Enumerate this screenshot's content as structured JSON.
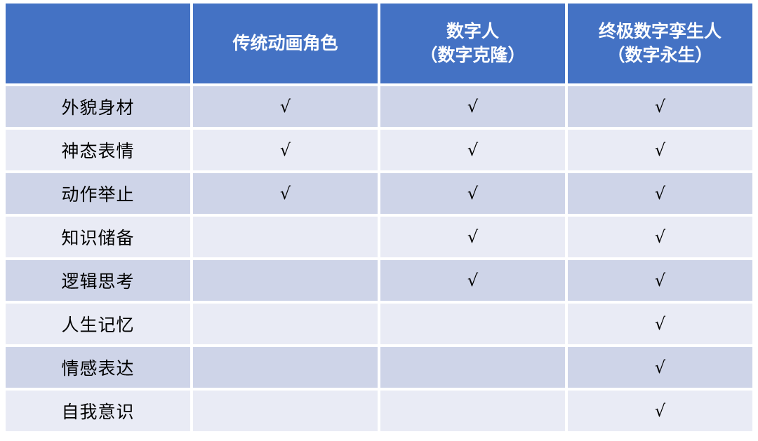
{
  "chart_data": {
    "type": "table",
    "checkmark_symbol": "√",
    "columns": [
      {
        "label": ""
      },
      {
        "label": "传统动画角色"
      },
      {
        "label": "数字人\n（数字克隆）"
      },
      {
        "label": "终极数字孪生人\n（数字永生）"
      }
    ],
    "rows": [
      {
        "label": "外貌身材",
        "cells": [
          "√",
          "√",
          "√"
        ]
      },
      {
        "label": "神态表情",
        "cells": [
          "√",
          "√",
          "√"
        ]
      },
      {
        "label": "动作举止",
        "cells": [
          "√",
          "√",
          "√"
        ]
      },
      {
        "label": "知识储备",
        "cells": [
          "",
          "√",
          "√"
        ]
      },
      {
        "label": "逻辑思考",
        "cells": [
          "",
          "√",
          "√"
        ]
      },
      {
        "label": "人生记忆",
        "cells": [
          "",
          "",
          "√"
        ]
      },
      {
        "label": "情感表达",
        "cells": [
          "",
          "",
          "√"
        ]
      },
      {
        "label": "自我意识",
        "cells": [
          "",
          "",
          "√"
        ]
      }
    ],
    "legend_position": "none",
    "grid": "banded-rows"
  },
  "colors": {
    "page-bg": "#FFFFFF",
    "header-bg": "#4472C4",
    "header-text": "#FFFFFF",
    "row-dark": "#CED4E8",
    "row-light": "#E9EBF5",
    "cell-text": "#000000"
  }
}
